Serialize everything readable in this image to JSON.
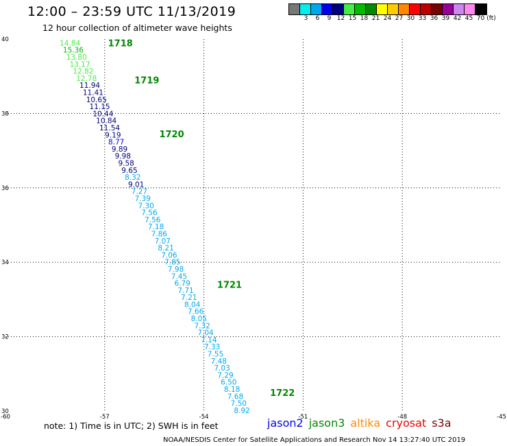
{
  "header": {
    "title": "12:00 – 23:59 UTC 11/13/2019",
    "subtitle": "12 hour collection of altimeter wave heights"
  },
  "colorbar": {
    "unit_label": "(ft)",
    "swatches": [
      {
        "label": "",
        "color": "#777777"
      },
      {
        "label": "3",
        "color": "#00eeee"
      },
      {
        "label": "6",
        "color": "#00a8f0"
      },
      {
        "label": "9",
        "color": "#0000ee"
      },
      {
        "label": "12",
        "color": "#00007a"
      },
      {
        "label": "15",
        "color": "#44ee44"
      },
      {
        "label": "18",
        "color": "#00bb00"
      },
      {
        "label": "21",
        "color": "#008800"
      },
      {
        "label": "24",
        "color": "#ffff00"
      },
      {
        "label": "27",
        "color": "#ffcc00"
      },
      {
        "label": "30",
        "color": "#ff8800"
      },
      {
        "label": "33",
        "color": "#ff0000"
      },
      {
        "label": "36",
        "color": "#bb0000"
      },
      {
        "label": "39",
        "color": "#770000"
      },
      {
        "label": "42",
        "color": "#990099"
      },
      {
        "label": "45",
        "color": "#cc88ee"
      },
      {
        "label": "70",
        "color": "#ff88ee"
      },
      {
        "label": "",
        "color": "#000000"
      }
    ]
  },
  "map": {
    "lon_range": [
      -60,
      -45
    ],
    "lat_range": [
      30,
      40
    ],
    "lon_ticks": [
      "-60",
      "-57",
      "-54",
      "-51",
      "-48",
      "-45"
    ],
    "lat_ticks": [
      "40",
      "38",
      "36",
      "34",
      "32",
      "30"
    ],
    "grid_lons": [
      -57,
      -54,
      -51,
      -48
    ],
    "grid_lats": [
      38,
      36,
      34,
      32
    ],
    "hour_labels": [
      {
        "text": "1718",
        "lon": -56.9,
        "lat": 39.9
      },
      {
        "text": "1719",
        "lon": -56.1,
        "lat": 38.9
      },
      {
        "text": "1720",
        "lon": -55.35,
        "lat": 37.45
      },
      {
        "text": "1721",
        "lon": -53.6,
        "lat": 33.4
      },
      {
        "text": "1722",
        "lon": -52.0,
        "lat": 30.5
      }
    ],
    "observations": [
      {
        "v": "14.84",
        "lon": -58.05,
        "lat": 39.9,
        "c": "#44ee44"
      },
      {
        "v": "15.36",
        "lon": -57.95,
        "lat": 39.71,
        "c": "#00bb00"
      },
      {
        "v": "13.80",
        "lon": -57.85,
        "lat": 39.52,
        "c": "#44ee44"
      },
      {
        "v": "13.17",
        "lon": -57.75,
        "lat": 39.33,
        "c": "#44ee44"
      },
      {
        "v": "12.82",
        "lon": -57.65,
        "lat": 39.14,
        "c": "#44ee44"
      },
      {
        "v": "12.78",
        "lon": -57.55,
        "lat": 38.95,
        "c": "#44ee44"
      },
      {
        "v": "11.94",
        "lon": -57.45,
        "lat": 38.76,
        "c": "#00007a"
      },
      {
        "v": "11.41",
        "lon": -57.35,
        "lat": 38.57,
        "c": "#00007a"
      },
      {
        "v": "10.65",
        "lon": -57.25,
        "lat": 38.38,
        "c": "#00007a"
      },
      {
        "v": "11.15",
        "lon": -57.15,
        "lat": 38.19,
        "c": "#00007a"
      },
      {
        "v": "10.44",
        "lon": -57.05,
        "lat": 38.0,
        "c": "#00007a"
      },
      {
        "v": "10.84",
        "lon": -56.95,
        "lat": 37.81,
        "c": "#00007a"
      },
      {
        "v": "11.54",
        "lon": -56.85,
        "lat": 37.62,
        "c": "#00007a"
      },
      {
        "v": "9.19",
        "lon": -56.75,
        "lat": 37.43,
        "c": "#00007a"
      },
      {
        "v": "8.77",
        "lon": -56.65,
        "lat": 37.24,
        "c": "#0000ee"
      },
      {
        "v": "9.89",
        "lon": -56.55,
        "lat": 37.05,
        "c": "#00007a"
      },
      {
        "v": "9.98",
        "lon": -56.45,
        "lat": 36.86,
        "c": "#00007a"
      },
      {
        "v": "9.58",
        "lon": -56.35,
        "lat": 36.67,
        "c": "#00007a"
      },
      {
        "v": "9.65",
        "lon": -56.25,
        "lat": 36.48,
        "c": "#00007a"
      },
      {
        "v": "8.32",
        "lon": -56.15,
        "lat": 36.29,
        "c": "#00a8f0"
      },
      {
        "v": "9.01",
        "lon": -56.05,
        "lat": 36.1,
        "c": "#00007a"
      },
      {
        "v": "7.27",
        "lon": -55.95,
        "lat": 35.91,
        "c": "#00a8f0"
      },
      {
        "v": "7.39",
        "lon": -55.85,
        "lat": 35.72,
        "c": "#00a8f0"
      },
      {
        "v": "7.30",
        "lon": -55.75,
        "lat": 35.53,
        "c": "#00a8f0"
      },
      {
        "v": "7.56",
        "lon": -55.65,
        "lat": 35.34,
        "c": "#00a8f0"
      },
      {
        "v": "7.56",
        "lon": -55.55,
        "lat": 35.15,
        "c": "#00a8f0"
      },
      {
        "v": "7.18",
        "lon": -55.45,
        "lat": 34.96,
        "c": "#00a8f0"
      },
      {
        "v": "7.86",
        "lon": -55.35,
        "lat": 34.77,
        "c": "#00a8f0"
      },
      {
        "v": "7.07",
        "lon": -55.25,
        "lat": 34.58,
        "c": "#00a8f0"
      },
      {
        "v": "8.21",
        "lon": -55.15,
        "lat": 34.39,
        "c": "#00a8f0"
      },
      {
        "v": "7.06",
        "lon": -55.05,
        "lat": 34.2,
        "c": "#00a8f0"
      },
      {
        "v": "7.85",
        "lon": -54.95,
        "lat": 34.01,
        "c": "#00a8f0"
      },
      {
        "v": "7.98",
        "lon": -54.85,
        "lat": 33.82,
        "c": "#00a8f0"
      },
      {
        "v": "7.45",
        "lon": -54.75,
        "lat": 33.63,
        "c": "#00a8f0"
      },
      {
        "v": "6.79",
        "lon": -54.65,
        "lat": 33.44,
        "c": "#00a8f0"
      },
      {
        "v": "7.71",
        "lon": -54.55,
        "lat": 33.25,
        "c": "#00a8f0"
      },
      {
        "v": "7.21",
        "lon": -54.45,
        "lat": 33.06,
        "c": "#00a8f0"
      },
      {
        "v": "8.04",
        "lon": -54.35,
        "lat": 32.87,
        "c": "#00a8f0"
      },
      {
        "v": "7.66",
        "lon": -54.25,
        "lat": 32.68,
        "c": "#00a8f0"
      },
      {
        "v": "8.05",
        "lon": -54.15,
        "lat": 32.49,
        "c": "#00a8f0"
      },
      {
        "v": "7.32",
        "lon": -54.05,
        "lat": 32.3,
        "c": "#00a8f0"
      },
      {
        "v": "7.04",
        "lon": -53.95,
        "lat": 32.11,
        "c": "#00a8f0"
      },
      {
        "v": "7.14",
        "lon": -53.85,
        "lat": 31.92,
        "c": "#00a8f0"
      },
      {
        "v": "7.33",
        "lon": -53.75,
        "lat": 31.73,
        "c": "#00a8f0"
      },
      {
        "v": "7.55",
        "lon": -53.65,
        "lat": 31.54,
        "c": "#00a8f0"
      },
      {
        "v": "7.48",
        "lon": -53.55,
        "lat": 31.35,
        "c": "#00a8f0"
      },
      {
        "v": "7.03",
        "lon": -53.45,
        "lat": 31.16,
        "c": "#00a8f0"
      },
      {
        "v": "7.29",
        "lon": -53.35,
        "lat": 30.97,
        "c": "#00a8f0"
      },
      {
        "v": "6.50",
        "lon": -53.25,
        "lat": 30.78,
        "c": "#00a8f0"
      },
      {
        "v": "8.18",
        "lon": -53.15,
        "lat": 30.59,
        "c": "#00a8f0"
      },
      {
        "v": "7.68",
        "lon": -53.05,
        "lat": 30.4,
        "c": "#00a8f0"
      },
      {
        "v": "7.50",
        "lon": -52.95,
        "lat": 30.21,
        "c": "#00a8f0"
      },
      {
        "v": "8.92",
        "lon": -52.85,
        "lat": 30.02,
        "c": "#00a8f0"
      }
    ]
  },
  "note": "note:  1) Time is in UTC;  2) SWH is in feet",
  "legend": [
    {
      "name": "jason2",
      "color": "#0000ee"
    },
    {
      "name": "jason3",
      "color": "#008800"
    },
    {
      "name": "altika",
      "color": "#ff8800"
    },
    {
      "name": "cryosat",
      "color": "#ee0000"
    },
    {
      "name": "s3a",
      "color": "#770000"
    }
  ],
  "footer": "NOAA/NESDIS Center for Satellite Applications and Research     Nov 14 13:27:40 UTC 2019"
}
